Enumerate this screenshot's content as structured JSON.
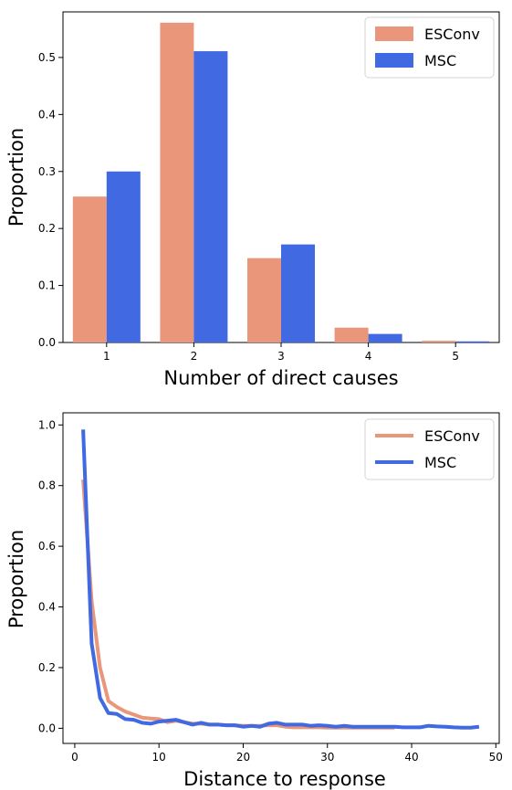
{
  "chart_data": [
    {
      "type": "bar",
      "categories": [
        "1",
        "2",
        "3",
        "4",
        "5"
      ],
      "series": [
        {
          "name": "ESConv",
          "color": "#E9967A",
          "values": [
            0.256,
            0.561,
            0.148,
            0.026,
            0.003
          ]
        },
        {
          "name": "MSC",
          "color": "#4169E1",
          "values": [
            0.3,
            0.511,
            0.172,
            0.015,
            0.002
          ]
        }
      ],
      "xlabel": "Number of direct causes",
      "ylabel": "Proportion",
      "ylim": [
        0,
        0.58
      ],
      "yticks": [
        0.0,
        0.1,
        0.2,
        0.3,
        0.4,
        0.5
      ],
      "ytick_labels": [
        "0.0",
        "0.1",
        "0.2",
        "0.3",
        "0.4",
        "0.5"
      ],
      "xtick_labels": [
        "1",
        "2",
        "3",
        "4",
        "5"
      ],
      "legend": "top-right",
      "grid": false
    },
    {
      "type": "line",
      "series": [
        {
          "name": "ESConv",
          "color": "#E9967A",
          "x": [
            1,
            2,
            3,
            4,
            5,
            6,
            7,
            8,
            9,
            10,
            11,
            12,
            13,
            14,
            15,
            16,
            17,
            18,
            19,
            20,
            21,
            22,
            23,
            24,
            25,
            26,
            27,
            28,
            29,
            30,
            31,
            32,
            33,
            34,
            35,
            36,
            37,
            38
          ],
          "y": [
            0.82,
            0.42,
            0.2,
            0.09,
            0.07,
            0.055,
            0.045,
            0.035,
            0.032,
            0.03,
            0.02,
            0.025,
            0.02,
            0.015,
            0.015,
            0.012,
            0.012,
            0.01,
            0.01,
            0.008,
            0.008,
            0.008,
            0.01,
            0.01,
            0.005,
            0.003,
            0.003,
            0.003,
            0.003,
            0.002,
            0.002,
            0.002,
            0.002,
            0.002,
            0.002,
            0.002,
            0.002,
            0.002
          ]
        },
        {
          "name": "MSC",
          "color": "#4169E1",
          "x": [
            1,
            2,
            3,
            4,
            5,
            6,
            7,
            8,
            9,
            10,
            11,
            12,
            13,
            14,
            15,
            16,
            17,
            18,
            19,
            20,
            21,
            22,
            23,
            24,
            25,
            26,
            27,
            28,
            29,
            30,
            31,
            32,
            33,
            34,
            35,
            36,
            37,
            38,
            39,
            40,
            41,
            42,
            43,
            44,
            45,
            46,
            47,
            48
          ],
          "y": [
            0.985,
            0.28,
            0.1,
            0.05,
            0.047,
            0.03,
            0.028,
            0.018,
            0.015,
            0.022,
            0.025,
            0.028,
            0.02,
            0.012,
            0.018,
            0.012,
            0.012,
            0.01,
            0.01,
            0.005,
            0.008,
            0.005,
            0.015,
            0.018,
            0.012,
            0.012,
            0.012,
            0.008,
            0.01,
            0.008,
            0.005,
            0.008,
            0.005,
            0.005,
            0.005,
            0.005,
            0.005,
            0.005,
            0.003,
            0.003,
            0.003,
            0.008,
            0.006,
            0.005,
            0.003,
            0.002,
            0.002,
            0.005
          ]
        }
      ],
      "xlabel": "Distance to response",
      "ylabel": "Proportion",
      "xlim": [
        -1.4,
        50.4
      ],
      "ylim": [
        -0.05,
        1.04
      ],
      "xticks": [
        0,
        10,
        20,
        30,
        40,
        50
      ],
      "xtick_labels": [
        "0",
        "10",
        "20",
        "30",
        "40",
        "50"
      ],
      "yticks": [
        0.0,
        0.2,
        0.4,
        0.6,
        0.8,
        1.0
      ],
      "ytick_labels": [
        "0.0",
        "0.2",
        "0.4",
        "0.6",
        "0.8",
        "1.0"
      ],
      "legend": "top-right",
      "grid": false
    }
  ]
}
